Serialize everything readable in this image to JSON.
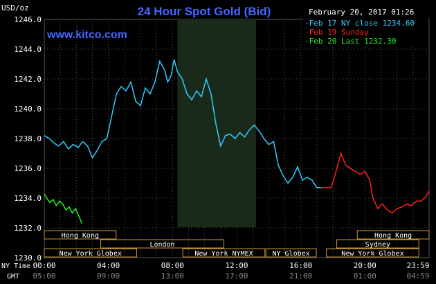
{
  "header": {
    "unit_label": "USD/oz",
    "title": "24 Hour Spot Gold (Bid)",
    "website": "www.kitco.com",
    "date": "February 20, 2017 01:26"
  },
  "legend": [
    {
      "text": "-Feb 17 NY close 1234.60",
      "color": "#33ccff"
    },
    {
      "text": "-Feb 19 Sunday",
      "color": "#ff2222"
    },
    {
      "text": "-Feb 20 Last 1232.30",
      "color": "#22ee22"
    }
  ],
  "colors": {
    "background": "#000000",
    "grid": "#555555",
    "title": "#4466ff",
    "website": "#4466ff",
    "session_fill": "#1a2a1a",
    "market_box": "#cc9933",
    "market_text": "#ffffff"
  },
  "markets": [
    {
      "label": "Hong Kong",
      "start_hour": 0,
      "end_hour": 7,
      "row": 0
    },
    {
      "label": "London",
      "start_hour": 5.5,
      "end_hour": 17.5,
      "row": 1
    },
    {
      "label": "New York Globex",
      "start_hour": 0,
      "end_hour": 9,
      "row": 2
    },
    {
      "label": "New York NYMEX",
      "start_hour": 13.5,
      "end_hour": 21.5,
      "row": 2
    },
    {
      "label": "NY Globex",
      "start_hour": 21.6,
      "end_hour": 26.5,
      "row": 2
    },
    {
      "label": "Hong Kong",
      "start_hour": 30.5,
      "end_hour": 37.5,
      "row": 0
    },
    {
      "label": "Sydney",
      "start_hour": 28.5,
      "end_hour": 36.5,
      "row": 1
    },
    {
      "label": "New York Globex",
      "start_hour": 27.5,
      "end_hour": 36.5,
      "row": 2
    }
  ],
  "time_axis": {
    "row1_label": "NY Time",
    "row2_label": "GMT",
    "ticks": [
      {
        "hour": 0,
        "ny": "00:00",
        "gmt": "05:00"
      },
      {
        "hour": 4,
        "ny": "04:00",
        "gmt": "09:00"
      },
      {
        "hour": 8,
        "ny": "08:00",
        "gmt": "13:00"
      },
      {
        "hour": 12,
        "ny": "12:00",
        "gmt": "17:00"
      },
      {
        "hour": 16,
        "ny": "16:00",
        "gmt": "21:00"
      },
      {
        "hour": 20,
        "ny": "20:00",
        "gmt": "01:00"
      },
      {
        "hour": 23.983,
        "ny": "23:59",
        "gmt": "04:59"
      }
    ]
  },
  "chart_data": {
    "type": "line",
    "title": "24 Hour Spot Gold (Bid)",
    "ylabel": "USD/oz",
    "ylim": [
      1230.0,
      1246.0
    ],
    "y_ticks": [
      1230.0,
      1232.0,
      1234.0,
      1236.0,
      1238.0,
      1240.0,
      1242.0,
      1244.0,
      1246.0
    ],
    "y_tick_labels": [
      "1230.0",
      "1232.0",
      "1234.0",
      "1236.0",
      "1238.0",
      "1240.0",
      "1242.0",
      "1244.0",
      "1246.0"
    ],
    "xlim_hours": [
      0,
      24
    ],
    "grid": true,
    "shaded_session_hours": [
      8.3,
      13.2
    ],
    "series": [
      {
        "name": "Feb 17 NY close 1234.60",
        "color": "#33ccff",
        "x": [
          0,
          0.3,
          0.6,
          0.9,
          1.2,
          1.5,
          1.8,
          2.1,
          2.4,
          2.7,
          3.0,
          3.3,
          3.6,
          3.9,
          4.2,
          4.5,
          4.8,
          5.1,
          5.4,
          5.7,
          6.0,
          6.3,
          6.6,
          6.9,
          7.2,
          7.5,
          7.7,
          7.9,
          8.1,
          8.3,
          8.6,
          8.9,
          9.2,
          9.5,
          9.8,
          10.1,
          10.4,
          10.7,
          11.0,
          11.3,
          11.6,
          11.9,
          12.2,
          12.5,
          12.8,
          13.1,
          13.4,
          13.7,
          14.0,
          14.3,
          14.6,
          14.9,
          15.2,
          15.5,
          15.8,
          16.1,
          16.4,
          16.7,
          17.0,
          17.3
        ],
        "values": [
          1238.2,
          1238.0,
          1237.7,
          1237.5,
          1237.8,
          1237.3,
          1237.6,
          1237.4,
          1237.8,
          1237.5,
          1236.7,
          1237.2,
          1237.8,
          1238.0,
          1239.5,
          1241.0,
          1241.5,
          1241.2,
          1241.8,
          1240.5,
          1240.2,
          1241.4,
          1241.0,
          1241.8,
          1243.2,
          1242.6,
          1241.8,
          1242.2,
          1243.3,
          1242.5,
          1242.0,
          1241.0,
          1240.6,
          1241.2,
          1240.8,
          1242.0,
          1241.0,
          1239.0,
          1237.5,
          1238.2,
          1238.3,
          1238.0,
          1238.4,
          1238.1,
          1238.6,
          1238.9,
          1238.5,
          1238.0,
          1237.6,
          1237.8,
          1236.2,
          1235.5,
          1235.0,
          1235.4,
          1236.1,
          1235.2,
          1235.4,
          1235.2,
          1234.7,
          1234.7
        ]
      },
      {
        "name": "Feb 19 Sunday",
        "color": "#ff2222",
        "x": [
          17.3,
          17.9,
          18.2,
          18.5,
          18.8,
          19.1,
          19.4,
          19.7,
          20.0,
          20.3,
          20.5,
          20.8,
          21.1,
          21.4,
          21.7,
          22.0,
          22.3,
          22.6,
          22.9,
          23.2,
          23.5,
          23.8,
          24.0
        ],
        "values": [
          1234.7,
          1234.7,
          1235.8,
          1237.0,
          1236.2,
          1236.0,
          1235.8,
          1235.6,
          1235.8,
          1235.2,
          1234.0,
          1233.3,
          1233.6,
          1233.2,
          1233.0,
          1233.3,
          1233.4,
          1233.6,
          1233.5,
          1233.8,
          1233.8,
          1234.1,
          1234.5
        ]
      },
      {
        "name": "Feb 20 Last 1232.30",
        "color": "#22ee22",
        "x": [
          0,
          0.15,
          0.35,
          0.55,
          0.75,
          0.95,
          1.15,
          1.35,
          1.55,
          1.75,
          1.95,
          2.15,
          2.35
        ],
        "values": [
          1234.3,
          1234.0,
          1233.7,
          1233.9,
          1233.5,
          1233.8,
          1233.6,
          1233.2,
          1233.4,
          1233.0,
          1233.3,
          1232.8,
          1232.3
        ]
      }
    ]
  }
}
